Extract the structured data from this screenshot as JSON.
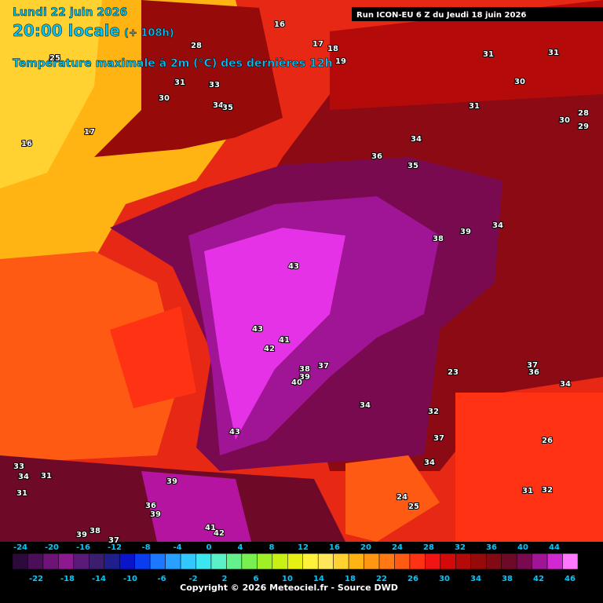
{
  "header": {
    "date": "Lundi 22 juin 2026",
    "time": "20:00 locale",
    "lead": "(+ 108h)",
    "subtitle": "Température maximale à 2m (°C) des dernières 12h",
    "run": "Run ICON-EU 6 Z du Jeudi 18 juin 2026"
  },
  "legend": {
    "top_labels": [
      -24,
      -20,
      -16,
      -12,
      -8,
      -4,
      0,
      4,
      8,
      12,
      16,
      20,
      24,
      28,
      32,
      36,
      40,
      44
    ],
    "bottom_labels": [
      -22,
      -18,
      -14,
      -10,
      -6,
      -2,
      2,
      6,
      10,
      14,
      18,
      22,
      26,
      30,
      34,
      38,
      42,
      46
    ],
    "colors": [
      "#2d0a3c",
      "#4b0f5a",
      "#6e1478",
      "#8c1a8e",
      "#5a1a78",
      "#3c1e6e",
      "#1e1e8c",
      "#0a14c8",
      "#0a3cf0",
      "#1e78ff",
      "#28a0ff",
      "#32c8ff",
      "#3ce6f0",
      "#5af0c8",
      "#64f08c",
      "#78f050",
      "#a0f028",
      "#c8f014",
      "#e6f014",
      "#fff03c",
      "#ffe65a",
      "#ffd232",
      "#ffb414",
      "#ff9614",
      "#ff7814",
      "#ff5a14",
      "#ff3214",
      "#f01414",
      "#d20a0a",
      "#b40a0a",
      "#960a0a",
      "#820a14",
      "#6e0a28",
      "#7a0a50",
      "#a01496",
      "#d228d2",
      "#ff78ff"
    ]
  },
  "map_labels": [
    "16",
    "28",
    "25",
    "17",
    "18",
    "19",
    "31",
    "31",
    "30",
    "31",
    "33",
    "30",
    "34",
    "35",
    "31",
    "28",
    "30",
    "29",
    "17",
    "16",
    "34",
    "36",
    "35",
    "38",
    "39",
    "34",
    "43",
    "43",
    "41",
    "42",
    "38",
    "37",
    "39",
    "40",
    "34",
    "37",
    "36",
    "34",
    "43",
    "37",
    "26",
    "32",
    "23",
    "34",
    "33",
    "34",
    "31",
    "39",
    "31",
    "24",
    "25",
    "36",
    "39",
    "39",
    "38",
    "37",
    "41",
    "42",
    "31",
    "32"
  ],
  "footer": {
    "copyright": "Copyright © 2026 Meteociel.fr - Source DWD"
  }
}
